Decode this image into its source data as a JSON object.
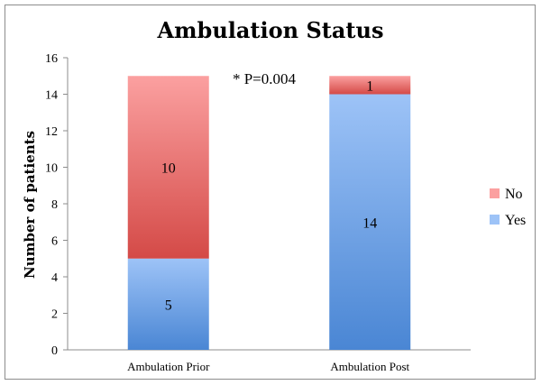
{
  "chart_data": {
    "type": "bar",
    "stacked": true,
    "title": "Ambulation Status",
    "xlabel": "",
    "ylabel": "Number of patients",
    "categories": [
      "Ambulation Prior",
      "Ambulation Post"
    ],
    "series": [
      {
        "name": "Yes",
        "values": [
          5,
          14
        ],
        "color": "#9dc3f7",
        "color_dark": "#4a86d4"
      },
      {
        "name": "No",
        "values": [
          10,
          1
        ],
        "color": "#fba0a0",
        "color_dark": "#d44a47"
      }
    ],
    "ylim": [
      0,
      16
    ],
    "yticks": [
      0,
      2,
      4,
      6,
      8,
      10,
      12,
      14,
      16
    ],
    "grid": false,
    "legend": "right",
    "legend_order": [
      "No",
      "Yes"
    ],
    "annotation": "* P=0.004"
  }
}
